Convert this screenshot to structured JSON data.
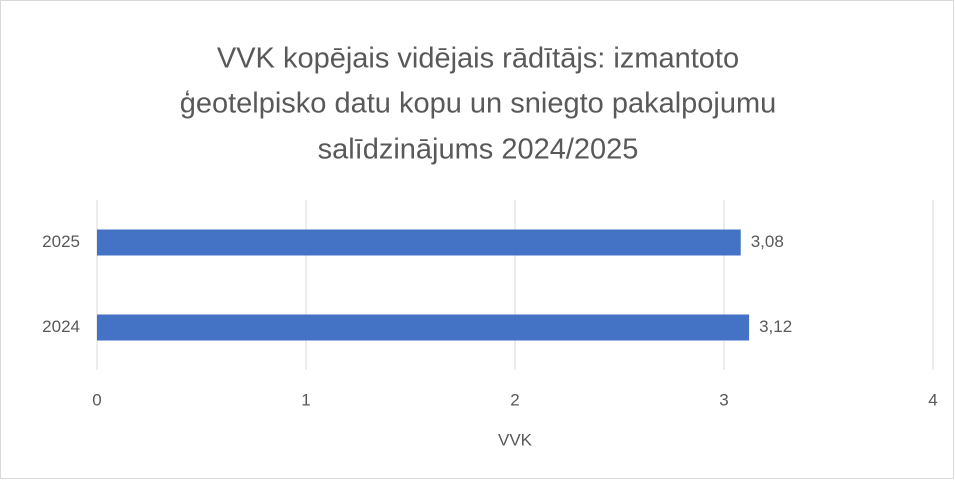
{
  "chart_data": {
    "type": "bar",
    "orientation": "horizontal",
    "title": [
      "VVK kopējais vidējais rādītājs: izmantoto",
      "ģeotelpisko datu kopu un sniegto pakalpojumu",
      "salīdzinājums 2024/2025"
    ],
    "categories": [
      "2024",
      "2025"
    ],
    "values": [
      3.12,
      3.08
    ],
    "value_labels": [
      "3,12",
      "3,08"
    ],
    "color": "#4472c4",
    "xlabel": "VVK",
    "xlim": [
      0,
      4
    ],
    "xticks": [
      0,
      1,
      2,
      3,
      4
    ],
    "grid": true
  }
}
